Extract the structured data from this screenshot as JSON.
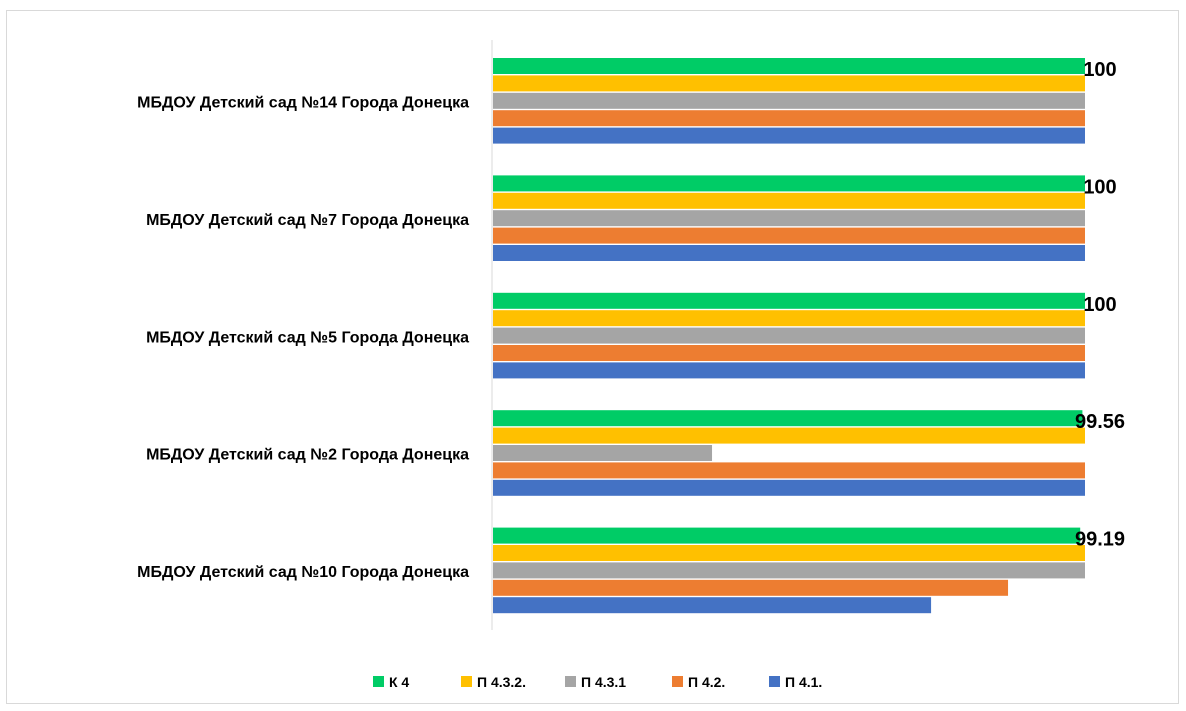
{
  "chart_data": {
    "type": "bar",
    "orientation": "horizontal",
    "categories": [
      "МБДОУ Детский сад №14 Города Донецка",
      "МБДОУ Детский сад №7 Города Донецка",
      "МБДОУ Детский сад №5 Города Донецка",
      "МБДОУ Детский сад №2 Города Донецка",
      "МБДОУ Детский сад №10 Города Донецка"
    ],
    "series": [
      {
        "name": "К 4",
        "color": "#00CC66",
        "values": [
          100,
          100,
          100,
          99.56,
          99.19
        ]
      },
      {
        "name": "П 4.3.2.",
        "color": "#FFC000",
        "values": [
          100,
          100,
          100,
          100,
          100
        ]
      },
      {
        "name": "П 4.3.1",
        "color": "#A5A5A5",
        "values": [
          100,
          100,
          100,
          37,
          100
        ]
      },
      {
        "name": "П 4.2.",
        "color": "#ED7D31",
        "values": [
          100,
          100,
          100,
          100,
          87
        ]
      },
      {
        "name": "П 4.1.",
        "color": "#4472C4",
        "values": [
          100,
          100,
          100,
          100,
          74
        ]
      }
    ],
    "data_labels": [
      "100",
      "100",
      "100",
      "99.56",
      "99.19"
    ],
    "xlim": [
      0,
      100
    ],
    "grid": false,
    "legend_position": "bottom"
  }
}
